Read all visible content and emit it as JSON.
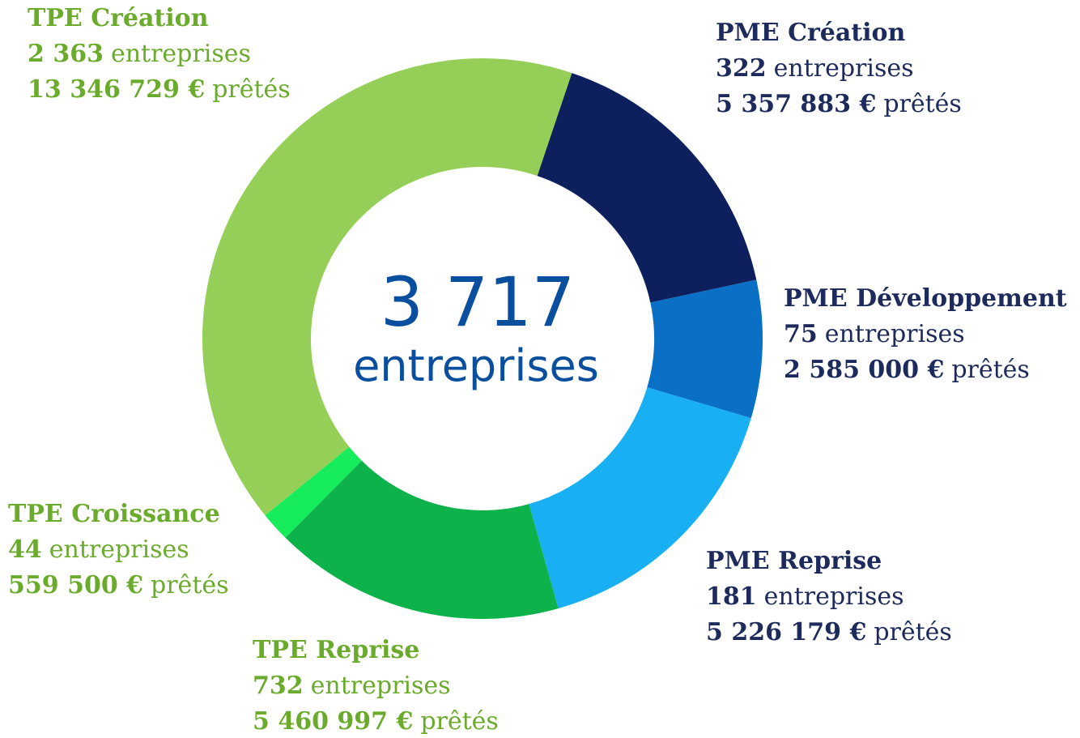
{
  "chart_data": {
    "type": "donut",
    "categories": [
      "PME Création",
      "PME Développement",
      "PME Reprise",
      "TPE Reprise",
      "TPE Croissance",
      "TPE Création"
    ],
    "values": [
      5357883,
      2585000,
      5226179,
      5460997,
      559500,
      13346729
    ],
    "value_labels": [
      "5 357 883 €",
      "2 585 000 €",
      "5 226 179 €",
      "5 460 997 €",
      "559 500 €",
      "13 346 729 €"
    ],
    "value_unit": "prêtés",
    "counts": [
      322,
      75,
      181,
      732,
      44,
      2363
    ],
    "count_labels": [
      "322",
      "75",
      "181",
      "732",
      "44",
      "2 363"
    ],
    "count_unit": "entreprises",
    "colors": [
      "#0e1f5e",
      "#0a70c6",
      "#18b0f2",
      "#0db24a",
      "#16ec5c",
      "#95cf58"
    ],
    "label_colors": [
      "#1d2a5c",
      "#1d2a5c",
      "#1d2a5c",
      "#6aab2b",
      "#6aab2b",
      "#6aab2b"
    ],
    "center": {
      "label": "3 717",
      "text": "entreprises"
    }
  }
}
